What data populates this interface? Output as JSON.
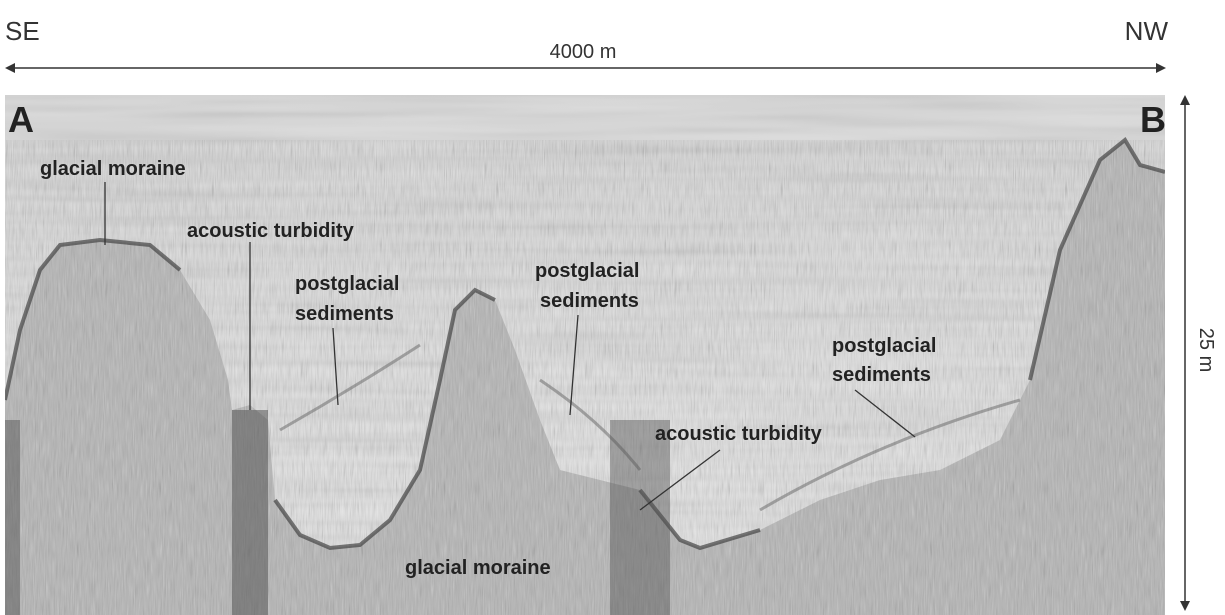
{
  "header": {
    "left": "SE",
    "right": "NW",
    "scale": "4000 m"
  },
  "profile": {
    "start": "A",
    "end": "B",
    "depth": "25 m"
  },
  "labels": [
    {
      "lines": [
        "glacial moraine"
      ]
    },
    {
      "lines": [
        "acoustic turbidity"
      ]
    },
    {
      "lines": [
        "postglacial",
        "sediments"
      ]
    },
    {
      "lines": [
        "postglacial",
        "sediments"
      ]
    },
    {
      "lines": [
        "postglacial",
        "sediments"
      ]
    },
    {
      "lines": [
        "acoustic turbidity"
      ]
    },
    {
      "lines": [
        "glacial moraine"
      ]
    }
  ]
}
